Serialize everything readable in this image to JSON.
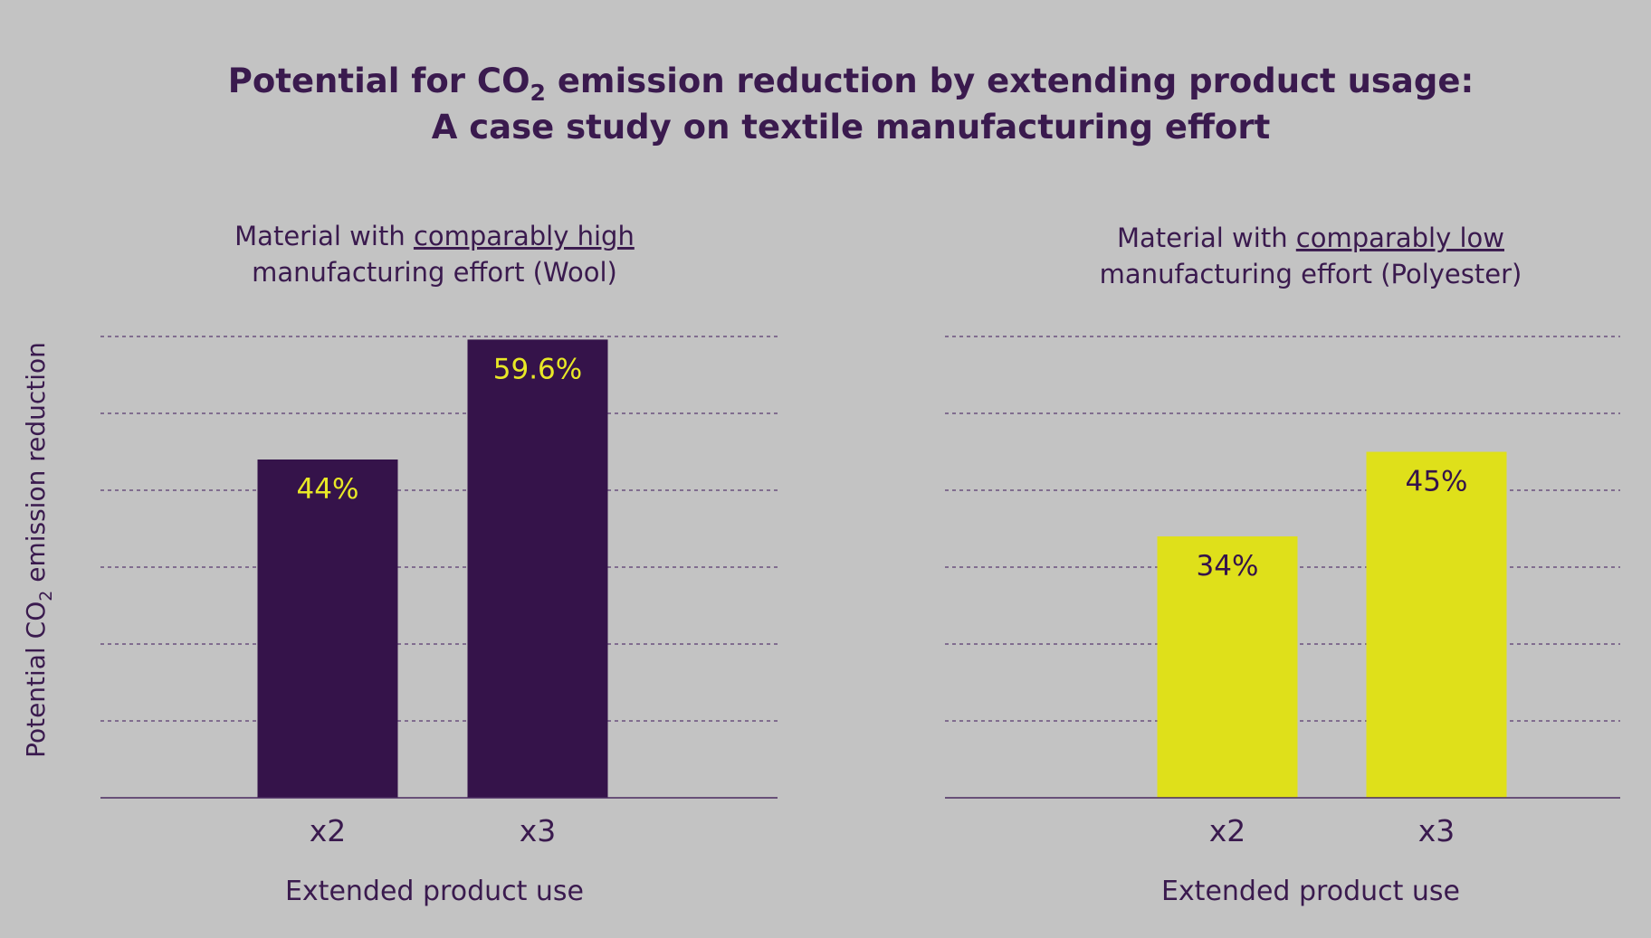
{
  "figure": {
    "title_line1_prefix": "Potential for CO",
    "title_line1_sub": "2",
    "title_line1_suffix": " emission reduction by extending product usage:",
    "title_line2": "A case study on textile manufacturing effort",
    "ylabel_prefix": "Potential CO",
    "ylabel_sub": "2",
    "ylabel_suffix": " emission reduction",
    "colors": {
      "background": "#c3c3c3",
      "text": "#3a1a4e",
      "wool_bar": "#35134a",
      "polyester_bar": "#dfe01a",
      "wool_label": "#e8e826",
      "polyester_label": "#35134a"
    }
  },
  "chart_data": [
    {
      "type": "bar",
      "subtitle_line1_prefix": "Material with ",
      "subtitle_line1_underlined": "comparably high",
      "subtitle_line2": "manufacturing effort (Wool)",
      "categories": [
        "x2",
        "x3"
      ],
      "values": [
        44,
        59.6
      ],
      "value_labels": [
        "44%",
        "59.6%"
      ],
      "xlabel": "Extended product use",
      "ylim": [
        0,
        60
      ],
      "grid": true,
      "bar_color": "#35134a",
      "label_color": "#e8e826"
    },
    {
      "type": "bar",
      "subtitle_line1_prefix": "Material with ",
      "subtitle_line1_underlined": "comparably low",
      "subtitle_line2": "manufacturing effort (Polyester)",
      "categories": [
        "x2",
        "x3"
      ],
      "values": [
        34,
        45
      ],
      "value_labels": [
        "34%",
        "45%"
      ],
      "xlabel": "Extended product use",
      "ylim": [
        0,
        60
      ],
      "grid": true,
      "bar_color": "#dfe01a",
      "label_color": "#35134a"
    }
  ]
}
